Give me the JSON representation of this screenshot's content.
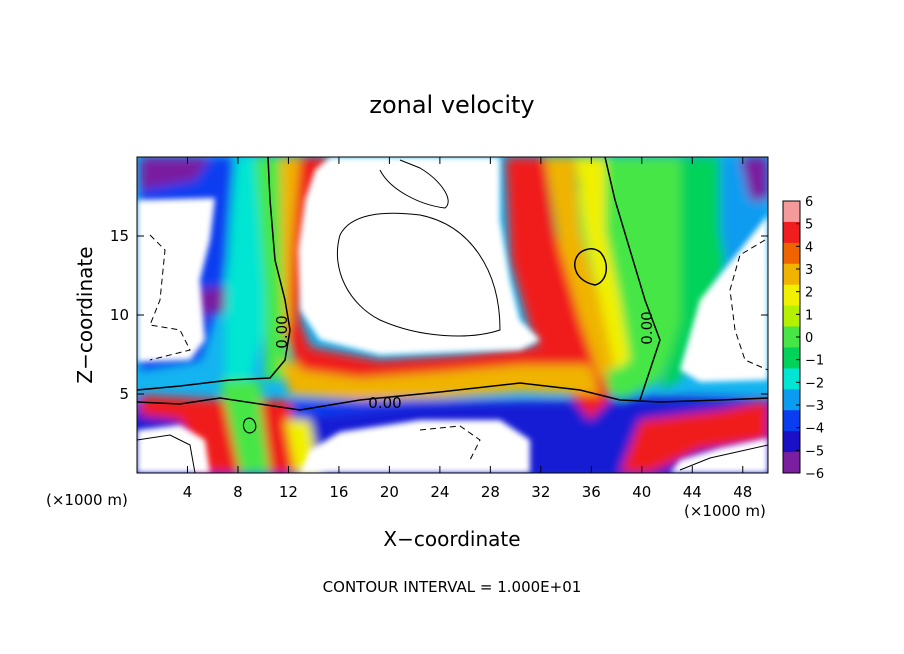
{
  "chart_data": {
    "type": "heatmap",
    "title": "zonal velocity",
    "xlabel": "X−coordinate",
    "ylabel": "Z−coordinate",
    "x_unit_left": "(×1000 m)",
    "x_unit_right": "(×1000 m)",
    "xlim": [
      0,
      50
    ],
    "ylim": [
      0,
      20
    ],
    "xticks": [
      4,
      8,
      12,
      16,
      20,
      24,
      28,
      32,
      36,
      40,
      44,
      48
    ],
    "yticks": [
      5,
      10,
      15
    ],
    "footer": "CONTOUR INTERVAL = 1.000E+01",
    "contour_label": "0.00",
    "colorbar": {
      "min": -6,
      "max": 6,
      "ticks": [
        6,
        5,
        4,
        3,
        2,
        1,
        0,
        -1,
        -2,
        -3,
        -4,
        -5,
        -6
      ],
      "tick_labels": [
        "6",
        "5",
        "4",
        "3",
        "2",
        "1",
        "0",
        "−1",
        "−2",
        "−3",
        "−4",
        "−5",
        "−6"
      ],
      "stops": [
        {
          "v": -6,
          "c": "#7a1fa0"
        },
        {
          "v": -5,
          "c": "#1a10c8"
        },
        {
          "v": -4,
          "c": "#0a3cf0"
        },
        {
          "v": -3,
          "c": "#0a9cf0"
        },
        {
          "v": -2,
          "c": "#00e6d2"
        },
        {
          "v": -1,
          "c": "#00d25a"
        },
        {
          "v": 0,
          "c": "#46e646"
        },
        {
          "v": 1,
          "c": "#b4f000"
        },
        {
          "v": 2,
          "c": "#f0f000"
        },
        {
          "v": 3,
          "c": "#f0b400"
        },
        {
          "v": 4,
          "c": "#f06400"
        },
        {
          "v": 5,
          "c": "#f01e1e"
        },
        {
          "v": 6,
          "c": "#f59a9a"
        }
      ]
    }
  }
}
